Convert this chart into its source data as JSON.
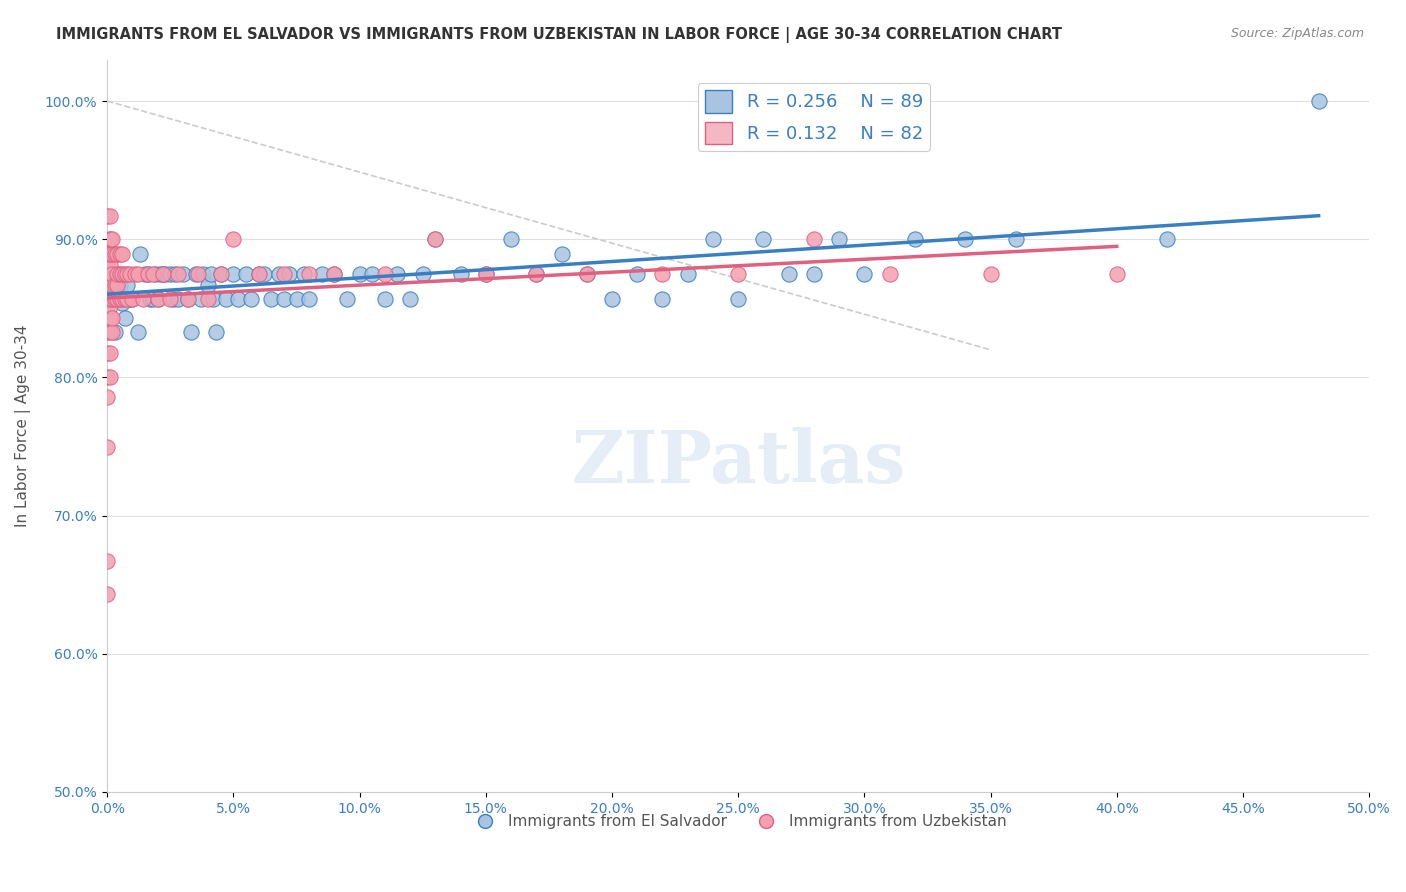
{
  "title": "IMMIGRANTS FROM EL SALVADOR VS IMMIGRANTS FROM UZBEKISTAN IN LABOR FORCE | AGE 30-34 CORRELATION CHART",
  "source": "Source: ZipAtlas.com",
  "xlabel_bottom": "",
  "ylabel": "In Labor Force | Age 30-34",
  "x_label_bottom_left": "0.0%",
  "x_label_bottom_right": "50.0%",
  "y_ticks": [
    0.5,
    0.6,
    0.7,
    0.8,
    0.9,
    1.0
  ],
  "y_tick_labels": [
    "50.0%",
    "60.0%",
    "70.0%",
    "80.0%",
    "90.0%",
    "100.0%"
  ],
  "xlim": [
    0.0,
    0.5
  ],
  "ylim": [
    0.5,
    1.03
  ],
  "legend_label1": "Immigrants from El Salvador",
  "legend_label2": "Immigrants from Uzbekistan",
  "r_blue": 0.256,
  "n_blue": 89,
  "r_pink": 0.132,
  "n_pink": 82,
  "blue_color": "#a8c4e0",
  "pink_color": "#f4a0b0",
  "blue_line_color": "#3a7fc1",
  "pink_line_color": "#e06080",
  "watermark": "ZIPatlas",
  "background_color": "#ffffff",
  "legend_box_color_blue": "#a8c4e0",
  "legend_box_color_pink": "#f4b8c4",
  "legend_text_color": "#3a7fc1",
  "title_fontsize": 11,
  "axis_label_fontsize": 11,
  "blue_scatter_x": [
    0.0,
    0.0,
    0.0,
    0.001,
    0.001,
    0.002,
    0.002,
    0.003,
    0.003,
    0.004,
    0.005,
    0.005,
    0.006,
    0.007,
    0.008,
    0.009,
    0.01,
    0.012,
    0.013,
    0.015,
    0.016,
    0.017,
    0.018,
    0.019,
    0.02,
    0.021,
    0.022,
    0.023,
    0.025,
    0.026,
    0.027,
    0.028,
    0.03,
    0.032,
    0.033,
    0.035,
    0.037,
    0.038,
    0.04,
    0.041,
    0.042,
    0.043,
    0.045,
    0.047,
    0.05,
    0.052,
    0.055,
    0.057,
    0.06,
    0.062,
    0.065,
    0.068,
    0.07,
    0.072,
    0.075,
    0.078,
    0.08,
    0.085,
    0.09,
    0.095,
    0.1,
    0.105,
    0.11,
    0.115,
    0.12,
    0.125,
    0.13,
    0.14,
    0.15,
    0.16,
    0.17,
    0.18,
    0.19,
    0.2,
    0.21,
    0.22,
    0.23,
    0.24,
    0.25,
    0.26,
    0.27,
    0.28,
    0.29,
    0.3,
    0.32,
    0.34,
    0.36,
    0.42,
    0.48
  ],
  "blue_scatter_y": [
    0.857,
    0.857,
    0.889,
    0.875,
    0.889,
    0.889,
    0.867,
    0.857,
    0.833,
    0.875,
    0.857,
    0.867,
    0.854,
    0.843,
    0.867,
    0.857,
    0.857,
    0.833,
    0.889,
    0.875,
    0.875,
    0.857,
    0.857,
    0.875,
    0.857,
    0.875,
    0.875,
    0.875,
    0.875,
    0.857,
    0.875,
    0.857,
    0.875,
    0.857,
    0.833,
    0.875,
    0.857,
    0.875,
    0.867,
    0.875,
    0.857,
    0.833,
    0.875,
    0.857,
    0.875,
    0.857,
    0.875,
    0.857,
    0.875,
    0.875,
    0.857,
    0.875,
    0.857,
    0.875,
    0.857,
    0.875,
    0.857,
    0.875,
    0.875,
    0.857,
    0.875,
    0.875,
    0.857,
    0.875,
    0.857,
    0.875,
    0.9,
    0.875,
    0.875,
    0.9,
    0.875,
    0.889,
    0.875,
    0.857,
    0.875,
    0.857,
    0.875,
    0.9,
    0.857,
    0.9,
    0.875,
    0.875,
    0.9,
    0.875,
    0.9,
    0.9,
    0.9,
    0.9,
    1.0
  ],
  "pink_scatter_x": [
    0.0,
    0.0,
    0.0,
    0.0,
    0.0,
    0.0,
    0.0,
    0.0,
    0.0,
    0.0,
    0.0,
    0.0,
    0.0,
    0.0,
    0.001,
    0.001,
    0.001,
    0.001,
    0.001,
    0.001,
    0.001,
    0.001,
    0.001,
    0.001,
    0.001,
    0.001,
    0.001,
    0.002,
    0.002,
    0.002,
    0.002,
    0.002,
    0.002,
    0.002,
    0.003,
    0.003,
    0.003,
    0.004,
    0.004,
    0.004,
    0.004,
    0.005,
    0.005,
    0.005,
    0.006,
    0.006,
    0.006,
    0.007,
    0.007,
    0.008,
    0.008,
    0.009,
    0.01,
    0.011,
    0.012,
    0.014,
    0.016,
    0.018,
    0.02,
    0.022,
    0.025,
    0.028,
    0.032,
    0.036,
    0.04,
    0.045,
    0.05,
    0.06,
    0.07,
    0.08,
    0.09,
    0.11,
    0.13,
    0.15,
    0.17,
    0.19,
    0.22,
    0.25,
    0.28,
    0.31,
    0.35,
    0.4
  ],
  "pink_scatter_y": [
    0.643,
    0.667,
    0.75,
    0.786,
    0.8,
    0.818,
    0.833,
    0.852,
    0.857,
    0.861,
    0.875,
    0.882,
    0.889,
    0.917,
    0.8,
    0.818,
    0.833,
    0.843,
    0.852,
    0.857,
    0.867,
    0.875,
    0.882,
    0.889,
    0.9,
    0.9,
    0.917,
    0.833,
    0.843,
    0.857,
    0.867,
    0.875,
    0.889,
    0.9,
    0.857,
    0.867,
    0.889,
    0.857,
    0.867,
    0.875,
    0.889,
    0.857,
    0.875,
    0.889,
    0.857,
    0.875,
    0.889,
    0.857,
    0.875,
    0.857,
    0.875,
    0.875,
    0.857,
    0.875,
    0.875,
    0.857,
    0.875,
    0.875,
    0.857,
    0.875,
    0.857,
    0.875,
    0.857,
    0.875,
    0.857,
    0.875,
    0.9,
    0.875,
    0.875,
    0.875,
    0.875,
    0.875,
    0.9,
    0.875,
    0.875,
    0.875,
    0.875,
    0.875,
    0.9,
    0.875,
    0.875,
    0.875
  ]
}
